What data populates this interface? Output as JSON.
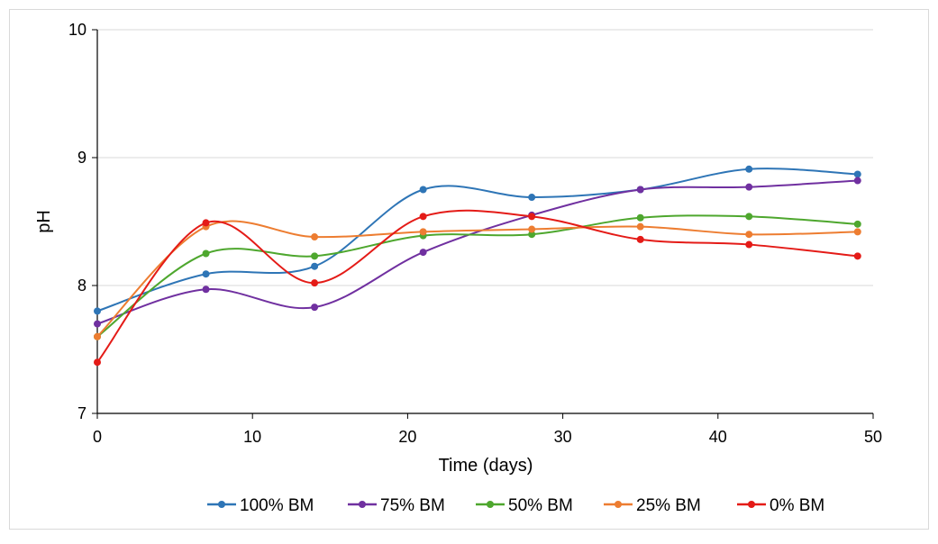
{
  "chart_data": {
    "type": "line",
    "title": "",
    "xlabel": "Time (days)",
    "ylabel": "pH",
    "xlim": [
      0,
      50
    ],
    "ylim": [
      7,
      10
    ],
    "x_ticks": [
      "0",
      "10",
      "20",
      "30",
      "40",
      "50"
    ],
    "y_ticks": [
      "7",
      "8",
      "9",
      "10"
    ],
    "grid": "horizontal",
    "legend_position": "bottom",
    "x": [
      0,
      7,
      14,
      21,
      28,
      35,
      42,
      49
    ],
    "series": [
      {
        "name": "100% BM",
        "color": "#2E75B6",
        "values": [
          7.8,
          8.09,
          8.15,
          8.75,
          8.69,
          8.75,
          8.91,
          8.87
        ]
      },
      {
        "name": "75% BM",
        "color": "#7030A0",
        "values": [
          7.7,
          7.97,
          7.83,
          8.26,
          8.55,
          8.75,
          8.77,
          8.82
        ]
      },
      {
        "name": "50% BM",
        "color": "#4EA72E",
        "values": [
          7.6,
          8.25,
          8.23,
          8.39,
          8.4,
          8.53,
          8.54,
          8.48
        ]
      },
      {
        "name": "25% BM",
        "color": "#ED7D31",
        "values": [
          7.6,
          8.46,
          8.38,
          8.42,
          8.44,
          8.46,
          8.4,
          8.42
        ]
      },
      {
        "name": "0% BM",
        "color": "#E41B17",
        "values": [
          7.4,
          8.49,
          8.02,
          8.54,
          8.54,
          8.36,
          8.32,
          8.23
        ]
      }
    ]
  }
}
